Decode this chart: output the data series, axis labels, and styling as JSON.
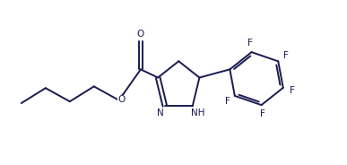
{
  "background_color": "#ffffff",
  "line_color": "#1a1a50",
  "line_width": 1.4,
  "font_size": 7.5,
  "fig_w": 3.87,
  "fig_h": 1.84,
  "dpi": 100,
  "xlim": [
    0,
    10
  ],
  "ylim": [
    0,
    5
  ]
}
